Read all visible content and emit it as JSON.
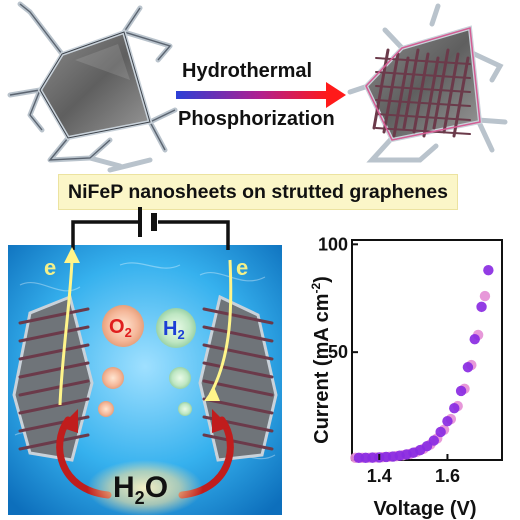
{
  "process": {
    "step1": "Hydrothermal",
    "step2": "Phosphorization"
  },
  "banner": "NiFeP nanosheets on strutted graphenes",
  "cell": {
    "electron_left": "e",
    "electron_right": "e",
    "o2": "O",
    "o2_sub": "2",
    "h2": "H",
    "h2_sub": "2",
    "water": "H",
    "water_sub": "2",
    "water_tail": "O"
  },
  "colors": {
    "arrow_start": "#2b3fd6",
    "arrow_end": "#ff1a1a",
    "nanosheet": "#6b3a4a",
    "electrolyte": "#2aa7e6",
    "point_dark": "#8a2be2",
    "point_light": "#e58fd6"
  },
  "chart_data": {
    "type": "scatter",
    "xlabel": "Voltage (V)",
    "ylabel": "Current (mA cm",
    "ylabel_sup": "-2",
    "ylabel_tail": ")",
    "xlim": [
      1.32,
      1.76
    ],
    "ylim": [
      0,
      102
    ],
    "xticks": [
      "1.4",
      "1.6"
    ],
    "xtick_values": [
      1.4,
      1.6
    ],
    "yticks": [
      "50",
      "100"
    ],
    "ytick_values": [
      50,
      100
    ],
    "series": [
      {
        "x": [
          1.33,
          1.35,
          1.37,
          1.39,
          1.41,
          1.43,
          1.45,
          1.47,
          1.49,
          1.51,
          1.53,
          1.55,
          1.57,
          1.59,
          1.61,
          1.63,
          1.65,
          1.67,
          1.69,
          1.71
        ],
        "values": [
          1,
          1,
          1,
          1.2,
          1.3,
          1.5,
          1.8,
          2.2,
          2.8,
          3.8,
          5.2,
          7.2,
          10,
          14,
          19,
          25,
          33,
          44,
          58,
          76
        ],
        "color": "#e58fd6"
      },
      {
        "x": [
          1.34,
          1.36,
          1.38,
          1.4,
          1.42,
          1.44,
          1.46,
          1.48,
          1.5,
          1.52,
          1.54,
          1.56,
          1.58,
          1.6,
          1.62,
          1.64,
          1.66,
          1.68,
          1.7,
          1.72
        ],
        "values": [
          1,
          1,
          1.1,
          1.2,
          1.4,
          1.6,
          2,
          2.6,
          3.4,
          4.6,
          6.4,
          9,
          13,
          18,
          24,
          32,
          43,
          56,
          71,
          88
        ],
        "color": "#8a2be2"
      }
    ]
  }
}
